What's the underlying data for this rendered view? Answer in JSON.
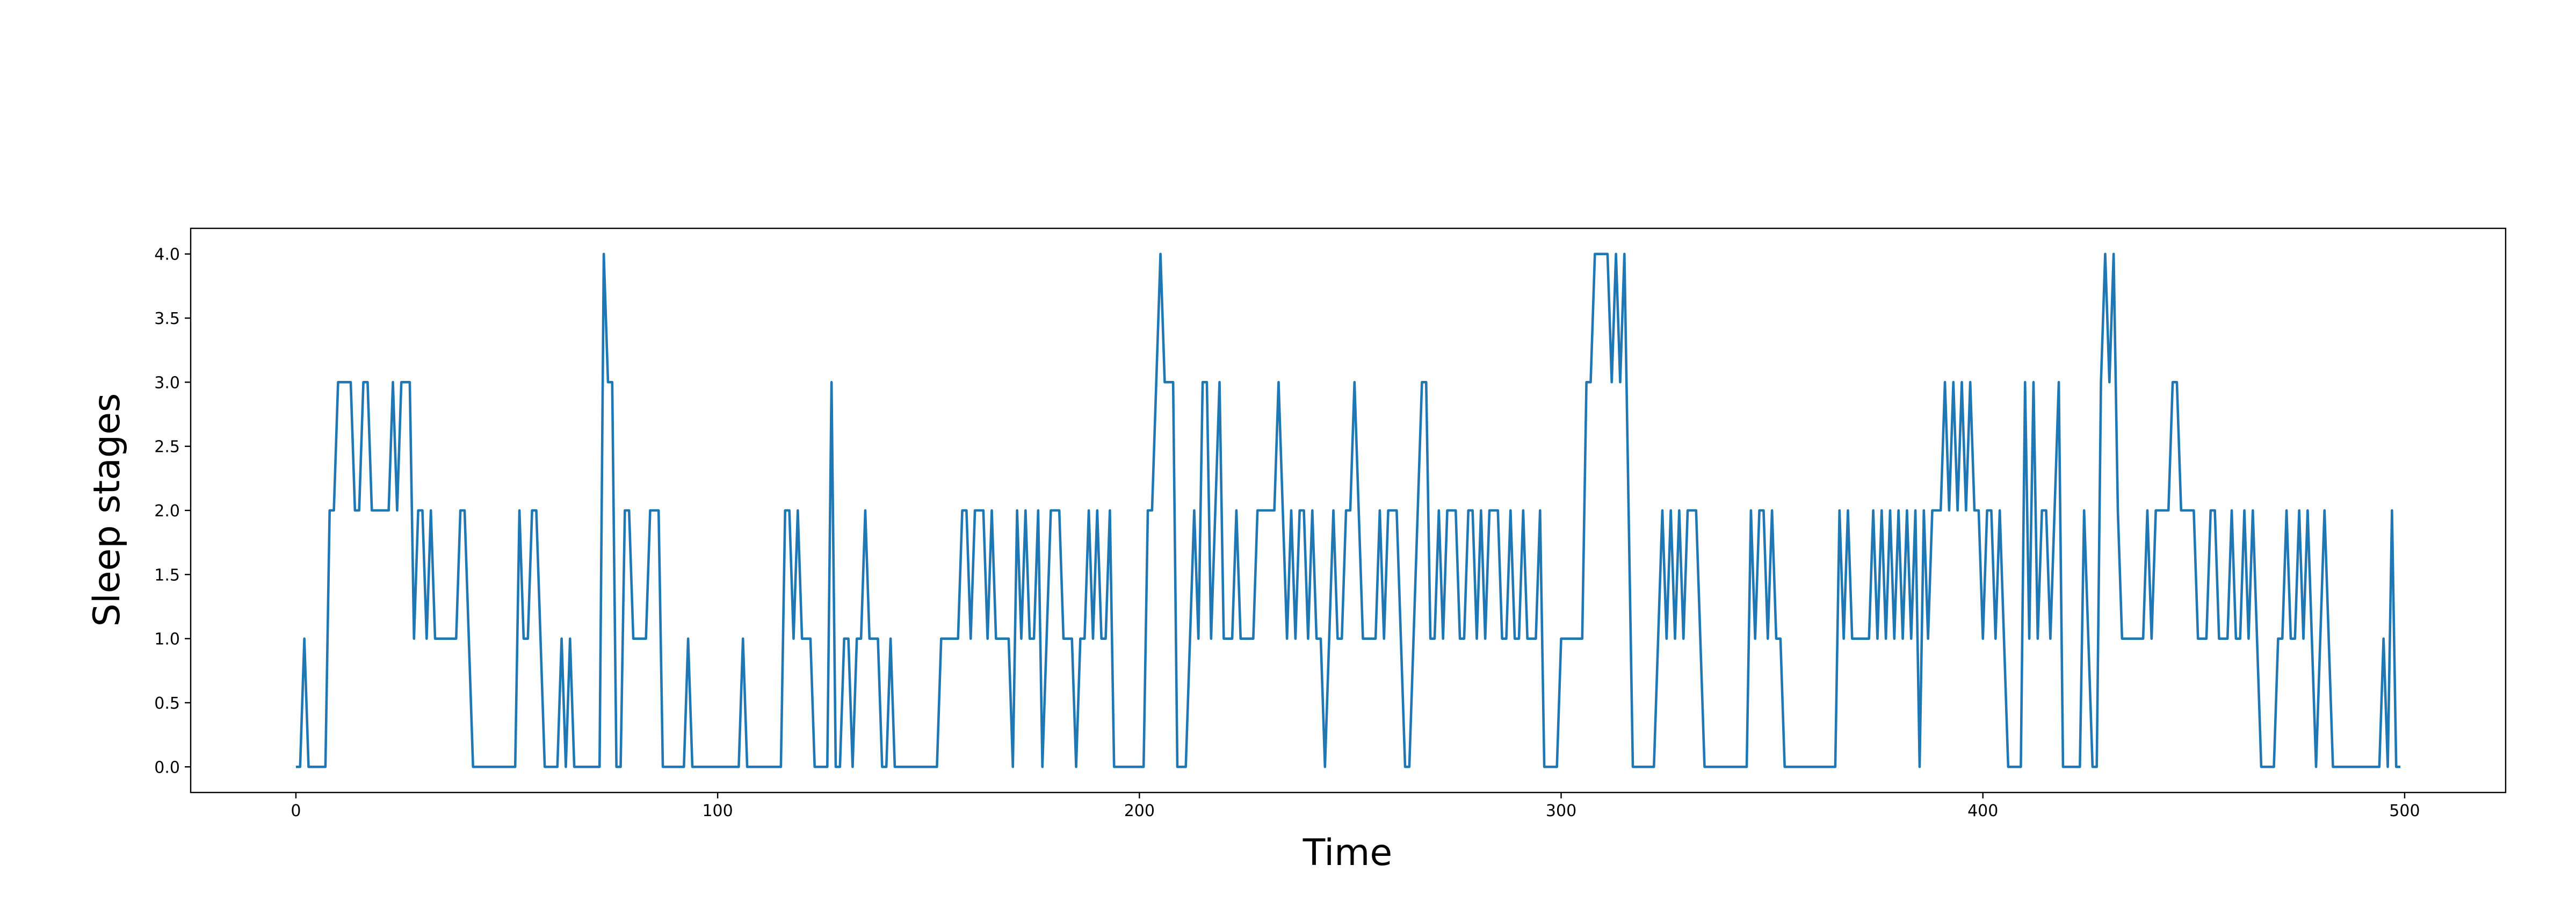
{
  "chart_data": {
    "type": "line",
    "xlabel": "Time",
    "ylabel": "Sleep stages",
    "xlim": [
      -24.95,
      523.95
    ],
    "ylim": [
      -0.2,
      4.2
    ],
    "xticks": [
      0,
      100,
      200,
      300,
      400,
      500
    ],
    "yticks": [
      {
        "value": 0,
        "label": "0.0"
      },
      {
        "value": 0.5,
        "label": "0.5"
      },
      {
        "value": 1,
        "label": "1.0"
      },
      {
        "value": 1.5,
        "label": "1.5"
      },
      {
        "value": 2,
        "label": "2.0"
      },
      {
        "value": 2.5,
        "label": "2.5"
      },
      {
        "value": 3,
        "label": "3.0"
      },
      {
        "value": 3.5,
        "label": "3.5"
      },
      {
        "value": 4,
        "label": "4.0"
      }
    ],
    "grid": false,
    "x": [
      0,
      1,
      2,
      3,
      4,
      5,
      6,
      7,
      8,
      9,
      10,
      11,
      12,
      13,
      14,
      15,
      16,
      17,
      18,
      19,
      20,
      21,
      22,
      23,
      24,
      25,
      26,
      27,
      28,
      29,
      30,
      31,
      32,
      33,
      34,
      35,
      36,
      37,
      38,
      39,
      40,
      41,
      42,
      43,
      44,
      45,
      46,
      47,
      48,
      49,
      50,
      51,
      52,
      53,
      54,
      55,
      56,
      57,
      58,
      59,
      60,
      61,
      62,
      63,
      64,
      65,
      66,
      67,
      68,
      69,
      70,
      71,
      72,
      73,
      74,
      75,
      76,
      77,
      78,
      79,
      80,
      81,
      82,
      83,
      84,
      85,
      86,
      87,
      88,
      89,
      90,
      91,
      92,
      93,
      94,
      95,
      96,
      97,
      98,
      99,
      100,
      101,
      102,
      103,
      104,
      105,
      106,
      107,
      108,
      109,
      110,
      111,
      112,
      113,
      114,
      115,
      116,
      117,
      118,
      119,
      120,
      121,
      122,
      123,
      124,
      125,
      126,
      127,
      128,
      129,
      130,
      131,
      132,
      133,
      134,
      135,
      136,
      137,
      138,
      139,
      140,
      141,
      142,
      143,
      144,
      145,
      146,
      147,
      148,
      149,
      150,
      151,
      152,
      153,
      154,
      155,
      156,
      157,
      158,
      159,
      160,
      161,
      162,
      163,
      164,
      165,
      166,
      167,
      168,
      169,
      170,
      171,
      172,
      173,
      174,
      175,
      176,
      177,
      178,
      179,
      180,
      181,
      182,
      183,
      184,
      185,
      186,
      187,
      188,
      189,
      190,
      191,
      192,
      193,
      194,
      195,
      196,
      197,
      198,
      199,
      200,
      201,
      202,
      203,
      204,
      205,
      206,
      207,
      208,
      209,
      210,
      211,
      212,
      213,
      214,
      215,
      216,
      217,
      218,
      219,
      220,
      221,
      222,
      223,
      224,
      225,
      226,
      227,
      228,
      229,
      230,
      231,
      232,
      233,
      234,
      235,
      236,
      237,
      238,
      239,
      240,
      241,
      242,
      243,
      244,
      245,
      246,
      247,
      248,
      249,
      250,
      251,
      252,
      253,
      254,
      255,
      256,
      257,
      258,
      259,
      260,
      261,
      262,
      263,
      264,
      265,
      266,
      267,
      268,
      269,
      270,
      271,
      272,
      273,
      274,
      275,
      276,
      277,
      278,
      279,
      280,
      281,
      282,
      283,
      284,
      285,
      286,
      287,
      288,
      289,
      290,
      291,
      292,
      293,
      294,
      295,
      296,
      297,
      298,
      299,
      300,
      301,
      302,
      303,
      304,
      305,
      306,
      307,
      308,
      309,
      310,
      311,
      312,
      313,
      314,
      315,
      316,
      317,
      318,
      319,
      320,
      321,
      322,
      323,
      324,
      325,
      326,
      327,
      328,
      329,
      330,
      331,
      332,
      333,
      334,
      335,
      336,
      337,
      338,
      339,
      340,
      341,
      342,
      343,
      344,
      345,
      346,
      347,
      348,
      349,
      350,
      351,
      352,
      353,
      354,
      355,
      356,
      357,
      358,
      359,
      360,
      361,
      362,
      363,
      364,
      365,
      366,
      367,
      368,
      369,
      370,
      371,
      372,
      373,
      374,
      375,
      376,
      377,
      378,
      379,
      380,
      381,
      382,
      383,
      384,
      385,
      386,
      387,
      388,
      389,
      390,
      391,
      392,
      393,
      394,
      395,
      396,
      397,
      398,
      399,
      400,
      401,
      402,
      403,
      404,
      405,
      406,
      407,
      408,
      409,
      410,
      411,
      412,
      413,
      414,
      415,
      416,
      417,
      418,
      419,
      420,
      421,
      422,
      423,
      424,
      425,
      426,
      427,
      428,
      429,
      430,
      431,
      432,
      433,
      434,
      435,
      436,
      437,
      438,
      439,
      440,
      441,
      442,
      443,
      444,
      445,
      446,
      447,
      448,
      449,
      450,
      451,
      452,
      453,
      454,
      455,
      456,
      457,
      458,
      459,
      460,
      461,
      462,
      463,
      464,
      465,
      466,
      467,
      468,
      469,
      470,
      471,
      472,
      473,
      474,
      475,
      476,
      477,
      478,
      479,
      480,
      481,
      482,
      483,
      484,
      485,
      486,
      487,
      488,
      489,
      490,
      491,
      492,
      493,
      494,
      495,
      496,
      497,
      498,
      499
    ],
    "series": [
      {
        "color": "#1f77b4",
        "values": [
          0,
          0,
          1,
          0,
          0,
          0,
          0,
          0,
          2,
          2,
          3,
          3,
          3,
          3,
          2,
          2,
          3,
          3,
          2,
          2,
          2,
          2,
          2,
          3,
          2,
          3,
          3,
          3,
          1,
          2,
          2,
          1,
          2,
          1,
          1,
          1,
          1,
          1,
          1,
          2,
          2,
          1,
          0,
          0,
          0,
          0,
          0,
          0,
          0,
          0,
          0,
          0,
          0,
          2,
          1,
          1,
          2,
          2,
          1,
          0,
          0,
          0,
          0,
          1,
          0,
          1,
          0,
          0,
          0,
          0,
          0,
          0,
          0,
          4,
          3,
          3,
          0,
          0,
          2,
          2,
          1,
          1,
          1,
          1,
          2,
          2,
          2,
          0,
          0,
          0,
          0,
          0,
          0,
          1,
          0,
          0,
          0,
          0,
          0,
          0,
          0,
          0,
          0,
          0,
          0,
          0,
          1,
          0,
          0,
          0,
          0,
          0,
          0,
          0,
          0,
          0,
          2,
          2,
          1,
          2,
          1,
          1,
          1,
          0,
          0,
          0,
          0,
          3,
          0,
          0,
          1,
          1,
          0,
          1,
          1,
          2,
          1,
          1,
          1,
          0,
          0,
          1,
          0,
          0,
          0,
          0,
          0,
          0,
          0,
          0,
          0,
          0,
          0,
          1,
          1,
          1,
          1,
          1,
          2,
          2,
          1,
          2,
          2,
          2,
          1,
          2,
          1,
          1,
          1,
          1,
          0,
          2,
          1,
          2,
          1,
          1,
          2,
          0,
          1,
          2,
          2,
          2,
          1,
          1,
          1,
          0,
          1,
          1,
          2,
          1,
          2,
          1,
          1,
          2,
          0,
          0,
          0,
          0,
          0,
          0,
          0,
          0,
          2,
          2,
          3,
          4,
          3,
          3,
          3,
          0,
          0,
          0,
          1,
          2,
          1,
          3,
          3,
          1,
          2,
          3,
          1,
          1,
          1,
          2,
          1,
          1,
          1,
          1,
          2,
          2,
          2,
          2,
          2,
          3,
          2,
          1,
          2,
          1,
          2,
          2,
          1,
          2,
          1,
          1,
          0,
          1,
          2,
          1,
          1,
          2,
          2,
          3,
          2,
          1,
          1,
          1,
          1,
          2,
          1,
          2,
          2,
          2,
          1,
          0,
          0,
          1,
          2,
          3,
          3,
          1,
          1,
          2,
          1,
          2,
          2,
          2,
          1,
          1,
          2,
          2,
          1,
          2,
          1,
          2,
          2,
          2,
          1,
          1,
          2,
          1,
          1,
          2,
          1,
          1,
          1,
          2,
          0,
          0,
          0,
          0,
          1,
          1,
          1,
          1,
          1,
          1,
          3,
          3,
          4,
          4,
          4,
          4,
          3,
          4,
          3,
          4,
          2,
          0,
          0,
          0,
          0,
          0,
          0,
          1,
          2,
          1,
          2,
          1,
          2,
          1,
          2,
          2,
          2,
          1,
          0,
          0,
          0,
          0,
          0,
          0,
          0,
          0,
          0,
          0,
          0,
          2,
          1,
          2,
          2,
          1,
          2,
          1,
          1,
          0,
          0,
          0,
          0,
          0,
          0,
          0,
          0,
          0,
          0,
          0,
          0,
          0,
          2,
          1,
          2,
          1,
          1,
          1,
          1,
          1,
          2,
          1,
          2,
          1,
          2,
          1,
          2,
          1,
          2,
          1,
          2,
          0,
          2,
          1,
          2,
          2,
          2,
          3,
          2,
          3,
          2,
          3,
          2,
          3,
          2,
          2,
          1,
          2,
          2,
          1,
          2,
          1,
          0,
          0,
          0,
          0,
          3,
          1,
          3,
          1,
          2,
          2,
          1,
          2,
          3,
          0,
          0,
          0,
          0,
          0,
          2,
          1,
          0,
          0,
          3,
          4,
          3,
          4,
          2,
          1,
          1,
          1,
          1,
          1,
          1,
          2,
          1,
          2,
          2,
          2,
          2,
          3,
          3,
          2,
          2,
          2,
          2,
          1,
          1,
          1,
          2,
          2,
          1,
          1,
          1,
          2,
          1,
          1,
          2,
          1,
          2,
          1,
          0,
          0,
          0,
          0,
          1,
          1,
          2,
          1,
          1,
          2,
          1,
          2,
          1,
          0,
          1,
          2,
          1,
          0,
          0,
          0,
          0,
          0,
          0,
          0,
          0,
          0,
          0,
          0,
          0,
          1,
          0,
          2,
          0,
          0
        ]
      }
    ]
  }
}
